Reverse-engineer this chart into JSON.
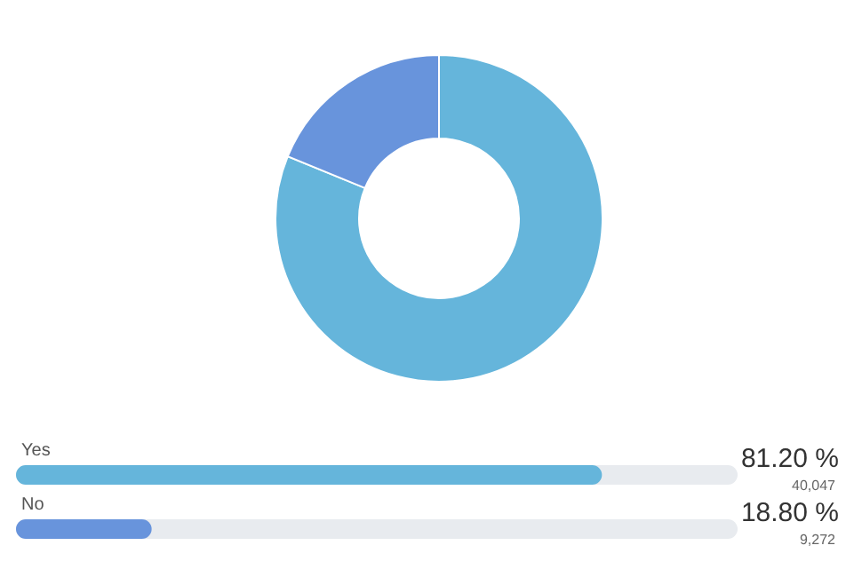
{
  "chart_data": [
    {
      "type": "donut",
      "categories": [
        null,
        null
      ],
      "values": [
        81.2,
        18.8
      ],
      "colors": [
        "#65b5db",
        "#6894dc"
      ]
    },
    {
      "type": "bar",
      "orientation": "horizontal",
      "categories": [
        "Yes",
        "No"
      ],
      "values": [
        81.2,
        18.8
      ],
      "colors": [
        "#65b5db",
        "#6894dc"
      ],
      "xlim": [
        0,
        100
      ],
      "tick_labels": false,
      "value_labels": [
        "81.20 %",
        "18.80 %"
      ],
      "annotations": [
        "40,047",
        "9,272"
      ]
    }
  ]
}
